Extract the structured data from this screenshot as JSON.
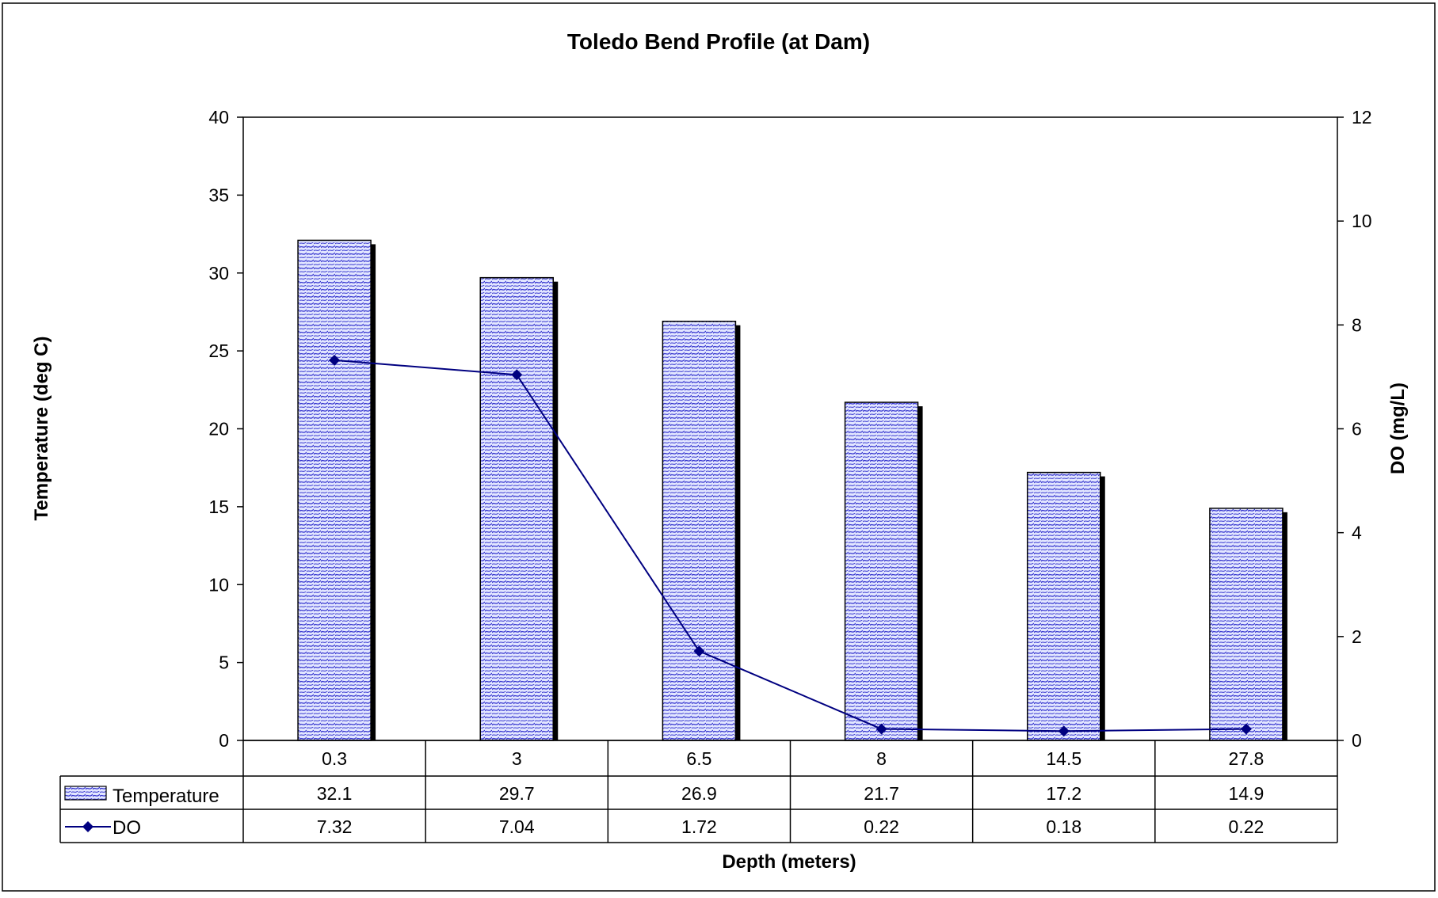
{
  "chart_data": {
    "type": "bar",
    "title": "Toledo Bend Profile (at Dam)",
    "xlabel": "Depth (meters)",
    "ylabel": "Temperature (deg C)",
    "y2label": "DO (mg/L)",
    "categories": [
      "0.3",
      "3",
      "6.5",
      "8",
      "14.5",
      "27.8"
    ],
    "ylim": [
      0,
      40
    ],
    "y2lim": [
      0,
      12
    ],
    "yticks": [
      "0",
      "5",
      "10",
      "15",
      "20",
      "25",
      "30",
      "35",
      "40"
    ],
    "y2ticks": [
      "0",
      "2",
      "4",
      "6",
      "8",
      "10",
      "12"
    ],
    "series": [
      {
        "name": "Temperature",
        "type": "bar",
        "axis": "left",
        "values": [
          32.1,
          29.7,
          26.9,
          21.7,
          17.2,
          14.9
        ],
        "labels": [
          "32.1",
          "29.7",
          "26.9",
          "21.7",
          "17.2",
          "14.9"
        ],
        "color": "#3333cc",
        "fill": "#dfe3ff"
      },
      {
        "name": "DO",
        "type": "line",
        "axis": "right",
        "values": [
          7.32,
          7.04,
          1.72,
          0.22,
          0.18,
          0.22
        ],
        "labels": [
          "7.32",
          "7.04",
          "1.72",
          "0.22",
          "0.18",
          "0.22"
        ],
        "color": "#000080"
      }
    ],
    "grid": false,
    "legend": "data-table"
  }
}
